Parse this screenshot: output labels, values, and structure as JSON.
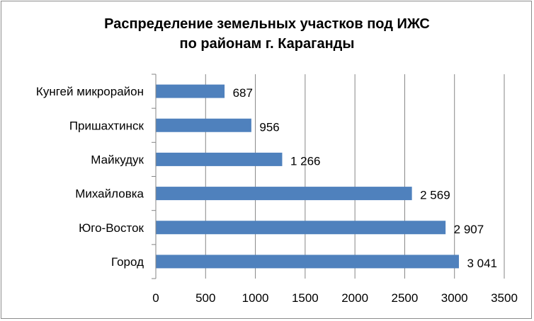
{
  "chart_data": {
    "type": "bar",
    "orientation": "horizontal",
    "title_line1": "Распределение земельных участков под ИЖС",
    "title_line2": "по районам  г. Караганды",
    "categories": [
      "Кунгей микрорайон",
      "Пришахтинск",
      "Майкудук",
      "Михайловка",
      "Юго-Восток",
      "Город"
    ],
    "values": [
      687,
      956,
      1266,
      2569,
      2907,
      3041
    ],
    "value_labels": [
      "687",
      "956",
      "1 266",
      "2 569",
      "2 907",
      "3 041"
    ],
    "xlim": [
      0,
      3500
    ],
    "x_ticks": [
      "0",
      "500",
      "1000",
      "1500",
      "2000",
      "2500",
      "3000",
      "3500"
    ],
    "grid": "vertical",
    "legend": "none",
    "bar_color": "#4f81bd"
  }
}
